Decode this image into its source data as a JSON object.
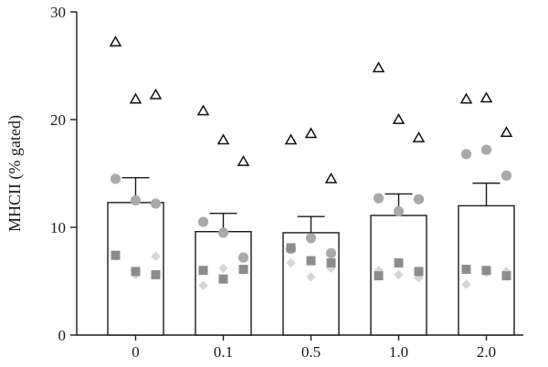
{
  "chart_data": {
    "type": "bar",
    "ylabel": "MHCII (% gated)",
    "xlabel": "",
    "ylim": [
      0,
      30
    ],
    "yticks": [
      0,
      10,
      20,
      30
    ],
    "grid": false,
    "categories": [
      "0",
      "0.1",
      "0.5",
      "1.0",
      "2.0"
    ],
    "bars": [
      {
        "category": "0",
        "mean": 12.3,
        "error": 2.3
      },
      {
        "category": "0.1",
        "mean": 9.6,
        "error": 1.7
      },
      {
        "category": "0.5",
        "mean": 9.5,
        "error": 1.5
      },
      {
        "category": "1.0",
        "mean": 11.1,
        "error": 2.0
      },
      {
        "category": "2.0",
        "mean": 12.0,
        "error": 2.1
      }
    ],
    "points": [
      {
        "category": "0",
        "marker": "triangle",
        "values": [
          27.2,
          21.9,
          22.3
        ]
      },
      {
        "category": "0",
        "marker": "circle",
        "values": [
          14.5,
          12.5,
          12.2
        ]
      },
      {
        "category": "0",
        "marker": "diamond",
        "values": [
          7.3,
          5.6,
          7.3
        ]
      },
      {
        "category": "0",
        "marker": "square",
        "values": [
          7.4,
          5.9,
          5.6
        ]
      },
      {
        "category": "0.1",
        "marker": "triangle",
        "values": [
          20.8,
          18.1,
          16.1
        ]
      },
      {
        "category": "0.1",
        "marker": "circle",
        "values": [
          10.5,
          9.5,
          7.2
        ]
      },
      {
        "category": "0.1",
        "marker": "diamond",
        "values": [
          4.6,
          6.2,
          6.0
        ]
      },
      {
        "category": "0.1",
        "marker": "square",
        "values": [
          6.0,
          5.2,
          6.1
        ]
      },
      {
        "category": "0.5",
        "marker": "triangle",
        "values": [
          18.1,
          18.7,
          14.5
        ]
      },
      {
        "category": "0.5",
        "marker": "circle",
        "values": [
          8.0,
          9.0,
          7.6
        ]
      },
      {
        "category": "0.5",
        "marker": "diamond",
        "values": [
          6.7,
          5.4,
          6.2
        ]
      },
      {
        "category": "0.5",
        "marker": "square",
        "values": [
          8.1,
          6.9,
          6.7
        ]
      },
      {
        "category": "1.0",
        "marker": "triangle",
        "values": [
          24.8,
          20.0,
          18.3
        ]
      },
      {
        "category": "1.0",
        "marker": "circle",
        "values": [
          12.7,
          11.5,
          12.6
        ]
      },
      {
        "category": "1.0",
        "marker": "diamond",
        "values": [
          6.0,
          5.6,
          5.3
        ]
      },
      {
        "category": "1.0",
        "marker": "square",
        "values": [
          5.5,
          6.7,
          5.9
        ]
      },
      {
        "category": "2.0",
        "marker": "triangle",
        "values": [
          21.9,
          22.0,
          18.8
        ]
      },
      {
        "category": "2.0",
        "marker": "circle",
        "values": [
          16.8,
          17.2,
          14.8
        ]
      },
      {
        "category": "2.0",
        "marker": "diamond",
        "values": [
          4.7,
          5.8,
          5.9
        ]
      },
      {
        "category": "2.0",
        "marker": "square",
        "values": [
          6.1,
          6.0,
          5.5
        ]
      }
    ],
    "colors": {
      "triangle": "#111111",
      "circle": "#a9a9a9",
      "diamond": "#d6d6d6",
      "square": "#8c8c8c"
    }
  }
}
